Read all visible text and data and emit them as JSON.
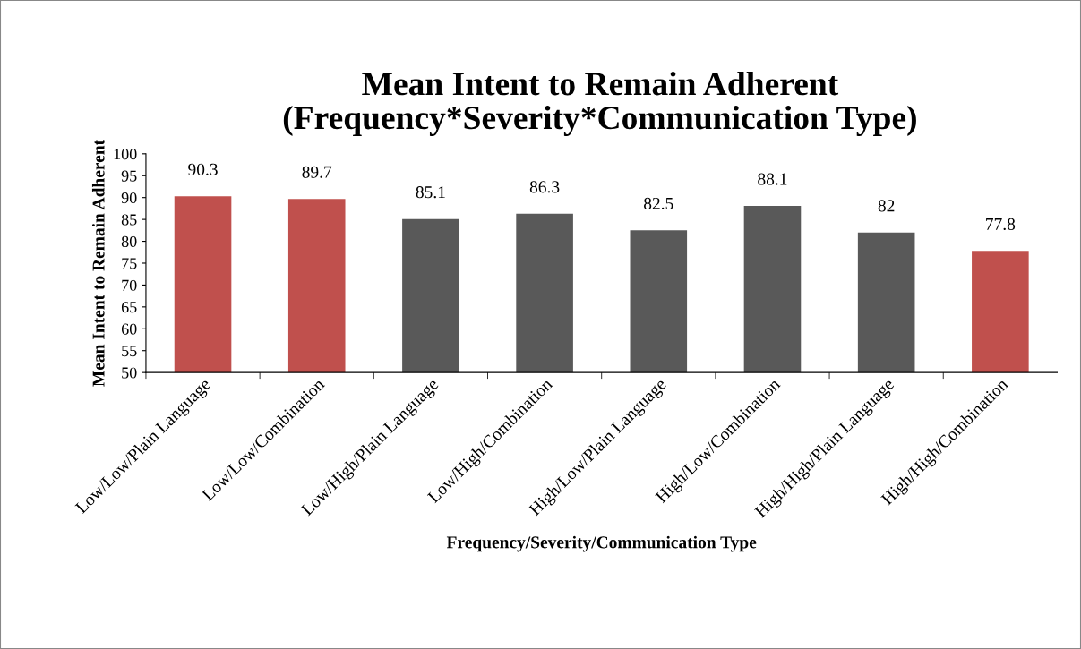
{
  "chart_data": {
    "type": "bar",
    "title": "Mean Intent to Remain Adherent\n(Frequency*Severity*Communication Type)",
    "xlabel": "Frequency/Severity/Communication Type",
    "ylabel": "Mean Intent to Remain Adherent",
    "categories": [
      "Low/Low/Plain Language",
      "Low/Low/Combination",
      "Low/High/Plain Language",
      "Low/High/Combination",
      "High/Low/Plain Language",
      "High/Low/Combination",
      "High/High/Plain Language",
      "High/High/Combination"
    ],
    "values": [
      90.3,
      89.7,
      85.1,
      86.3,
      82.5,
      88.1,
      82,
      77.8
    ],
    "colors": [
      "#c0504d",
      "#c0504d",
      "#595959",
      "#595959",
      "#595959",
      "#595959",
      "#595959",
      "#c0504d"
    ],
    "ylim": [
      50,
      100
    ],
    "yticks": [
      50,
      55,
      60,
      65,
      70,
      75,
      80,
      85,
      90,
      95,
      100
    ],
    "data_labels": true,
    "grid": false,
    "legend": false
  }
}
